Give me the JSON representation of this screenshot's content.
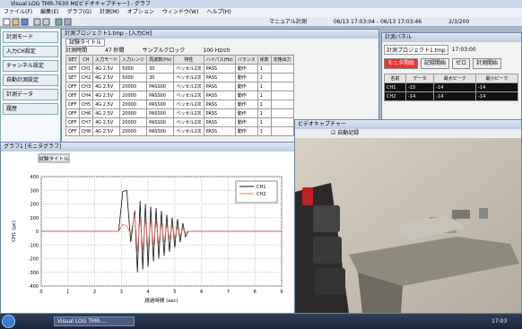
{
  "window": {
    "title": "Visual LOG TMR-7630 MI[ビデオキャプチャー] - グラフ",
    "menu": [
      "ファイル(F)",
      "編集(E)",
      "グラフ(G)",
      "計測(M)",
      "オプション",
      "ウィンドウ(W)",
      "ヘルプ(H)"
    ],
    "status": [
      "マニュアル計測",
      "06/13 17:03:04 - 06/13 17:03:46",
      "2/3/200"
    ]
  },
  "sidebar": [
    "計測モード",
    "入力CH設定",
    "チャンネル設定",
    "自動計測設定",
    "計測データ",
    "履歴"
  ],
  "table_window": {
    "title": "計測プロジェクト1.tmp - [入力CH]",
    "test_title": "試験タイトル",
    "info": [
      "計測時間",
      "47 秒間",
      "サンプルクロック",
      "100 Hz/ch"
    ],
    "headers": [
      "SET",
      "CH",
      "入力モード",
      "入力レンジ",
      "周波数(Hz)",
      "特性",
      "ハイパス(Hz)",
      "バランス",
      "係数",
      "定格出力"
    ],
    "rows": [
      [
        "SET",
        "CH1",
        "4G 2.5V",
        "5000",
        "30",
        "ベッセル2次",
        "PASS",
        "動作",
        "1",
        ""
      ],
      [
        "SET",
        "CH2",
        "4G 2.5V",
        "5000",
        "30",
        "ベッセル2次",
        "PASS",
        "動作",
        "1",
        ""
      ],
      [
        "OFF",
        "CH3",
        "4G 2.5V",
        "20000",
        "PASS00",
        "ベッセル2次",
        "PASS",
        "動作",
        "1",
        ""
      ],
      [
        "OFF",
        "CH4",
        "4G 2.5V",
        "20000",
        "PASS00",
        "ベッセル2次",
        "PASS",
        "動作",
        "1",
        ""
      ],
      [
        "OFF",
        "CH5",
        "4G 2.5V",
        "20000",
        "PASS00",
        "ベッセル2次",
        "PASS",
        "動作",
        "1",
        ""
      ],
      [
        "OFF",
        "CH6",
        "4G 2.5V",
        "20000",
        "PASS00",
        "ベッセル2次",
        "PASS",
        "動作",
        "1",
        ""
      ],
      [
        "OFF",
        "CH7",
        "4G 2.5V",
        "20000",
        "PASS00",
        "ベッセル2次",
        "PASS",
        "動作",
        "1",
        ""
      ],
      [
        "OFF",
        "CH8",
        "4G 2.5V",
        "20000",
        "PASS00",
        "ベッセル2次",
        "PASS",
        "動作",
        "1",
        ""
      ]
    ]
  },
  "panel": {
    "title": "計測パネル",
    "project": "計測プロジェクト1.tmp",
    "time": "17:03:00",
    "buttons": [
      "モニタ開始",
      "記録開始",
      "ゼロ",
      "計測開始"
    ],
    "headers": [
      "名前",
      "データ",
      "最大ピーク",
      "最小ピーク"
    ],
    "rows": [
      [
        "CH1",
        "-15",
        "-14",
        "-14"
      ],
      [
        "CH2",
        "-14",
        "-14",
        "-14"
      ]
    ]
  },
  "graph_window": {
    "title": "グラフ1 [モニタグラフ]"
  },
  "video_window": {
    "title": "ビデオキャプチャー",
    "checkbox": "自動記録"
  },
  "taskbar": {
    "app": "Visual LOG TMR-...",
    "clock": "17:03"
  },
  "chart_data": {
    "type": "line",
    "title": "試験タイトル",
    "x_label": "経過時間 (sec)",
    "y_label": "CH1 (με)",
    "x": [
      0,
      1,
      2,
      2.9,
      3.05,
      3.2,
      3.35,
      3.5,
      3.6,
      3.7,
      3.8,
      3.9,
      4.0,
      4.1,
      4.2,
      4.3,
      4.4,
      4.5,
      4.6,
      4.7,
      4.8,
      4.9,
      5.0,
      5.1,
      5.2,
      5.3,
      5.4,
      5.5,
      6,
      7,
      8,
      9
    ],
    "series": [
      {
        "name": "CH1",
        "color": "#111111",
        "values": [
          0,
          0,
          0,
          0,
          290,
          300,
          -80,
          150,
          -300,
          220,
          -280,
          200,
          -260,
          180,
          -220,
          170,
          -200,
          150,
          -180,
          120,
          -150,
          100,
          -120,
          90,
          -80,
          60,
          -40,
          0,
          0,
          0,
          0,
          0
        ]
      },
      {
        "name": "CH2",
        "color": "#e8705a",
        "values": [
          0,
          0,
          0,
          0,
          50,
          40,
          -20,
          120,
          -150,
          100,
          -140,
          90,
          -120,
          80,
          -100,
          70,
          -90,
          60,
          -80,
          50,
          -60,
          40,
          -50,
          30,
          -30,
          20,
          -10,
          0,
          0,
          0,
          0,
          0
        ]
      }
    ],
    "xlim": [
      0,
      9
    ],
    "xticks": [
      0,
      1,
      2,
      3,
      4,
      5,
      6,
      7,
      8,
      9
    ],
    "ylim": [
      -400,
      400
    ],
    "yticks": [
      -400,
      -300,
      -200,
      -100,
      0,
      100,
      200,
      300,
      400
    ],
    "grid": true
  }
}
